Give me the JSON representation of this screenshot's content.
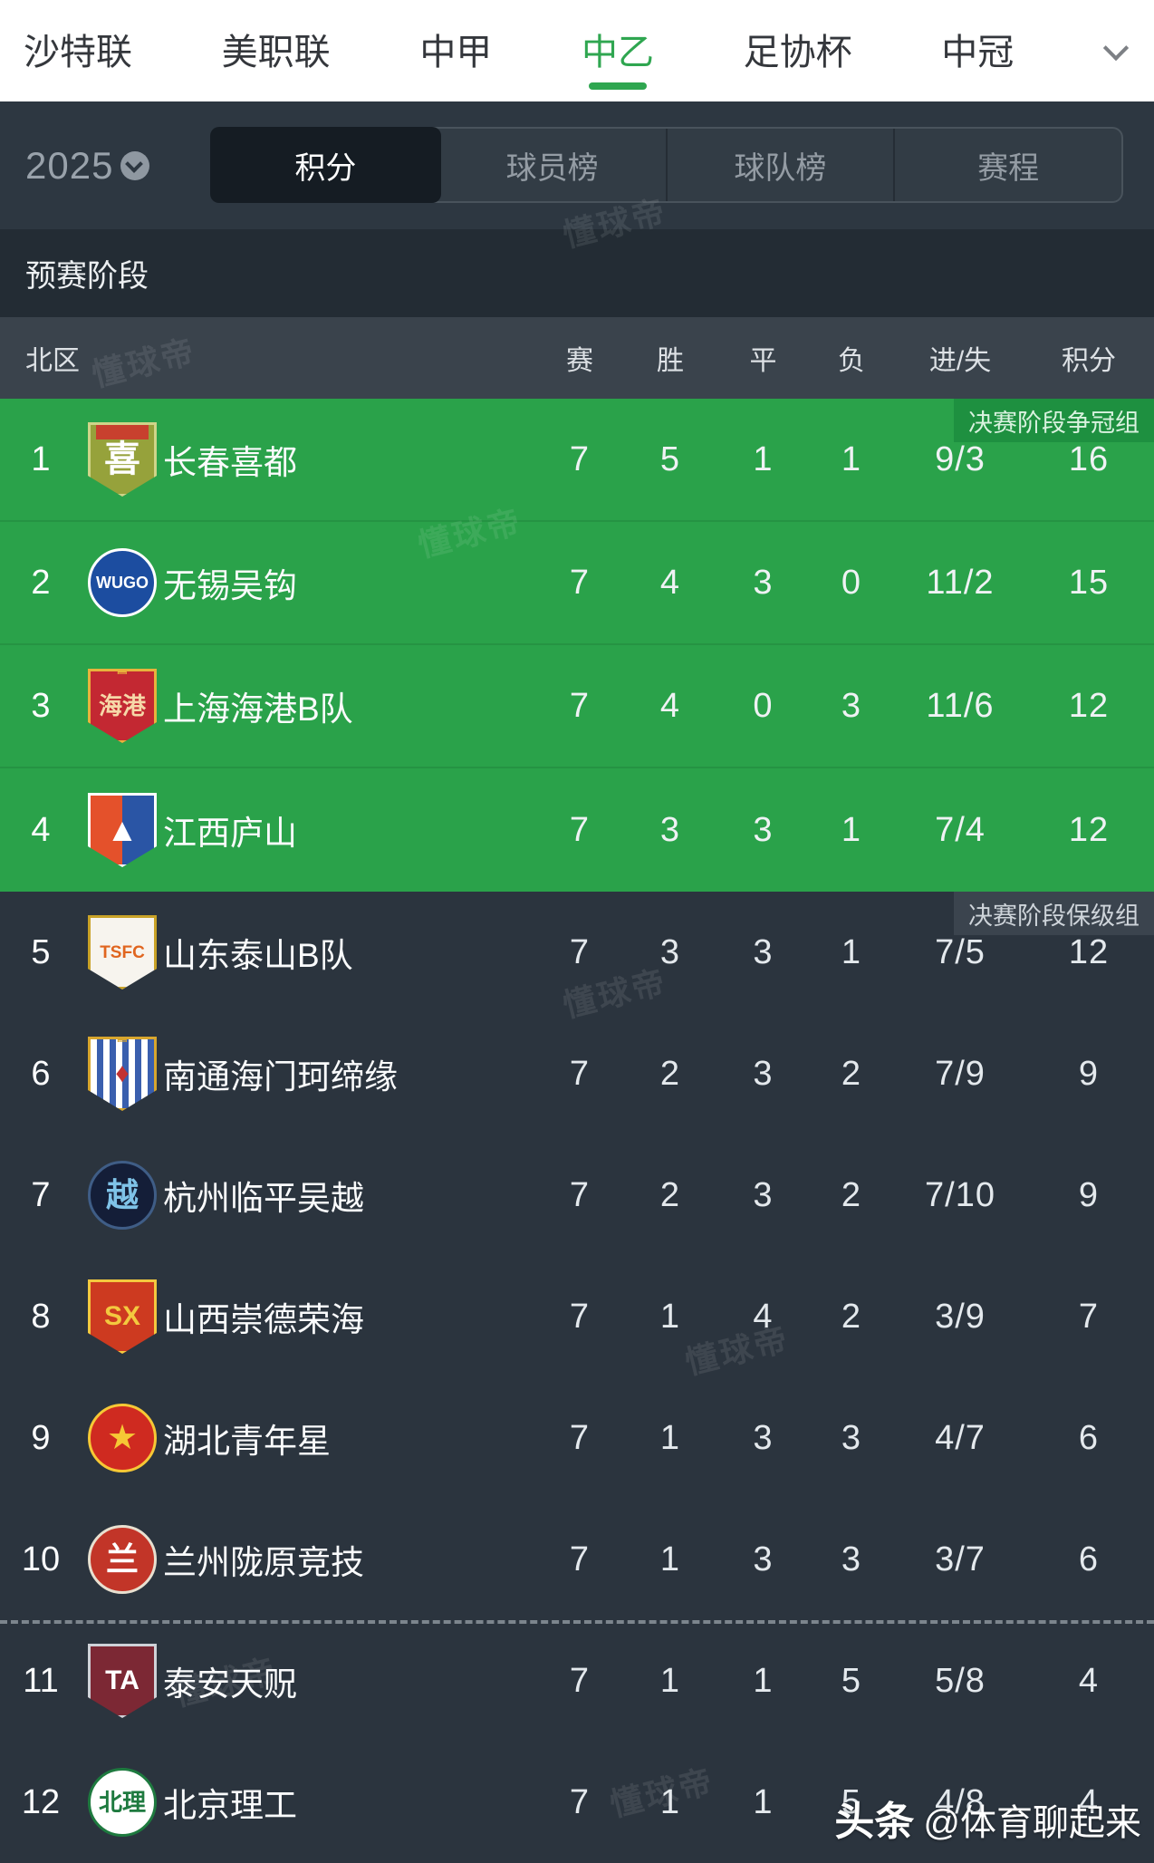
{
  "top_nav": {
    "items": [
      {
        "label": "沙特联",
        "active": false
      },
      {
        "label": "美职联",
        "active": false
      },
      {
        "label": "中甲",
        "active": false
      },
      {
        "label": "中乙",
        "active": true
      },
      {
        "label": "足协杯",
        "active": false
      },
      {
        "label": "中冠",
        "active": false
      }
    ],
    "more_icon": "chevron-down",
    "active_color": "#2fa650"
  },
  "filter_bar": {
    "season": "2025",
    "tabs": [
      {
        "label": "积分",
        "active": true
      },
      {
        "label": "球员榜",
        "active": false
      },
      {
        "label": "球队榜",
        "active": false
      },
      {
        "label": "赛程",
        "active": false
      }
    ]
  },
  "stage_title": "预赛阶段",
  "table": {
    "region_header": "北区",
    "columns": [
      "赛",
      "胜",
      "平",
      "负",
      "进/失",
      "积分"
    ],
    "promotion_label": "决赛阶段争冠组",
    "relegation_label": "决赛阶段保级组",
    "dashed_divider_after_rank": 10,
    "zone_colors": {
      "promotion_bg": "#2aa24a",
      "relegation_bg": "#2b343e"
    },
    "rows": [
      {
        "rank": 1,
        "team": "长春喜都",
        "played": 7,
        "won": 5,
        "drawn": 1,
        "lost": 1,
        "goals": "9/3",
        "points": 16,
        "group": "promotion",
        "logo": {
          "shape": "shield",
          "bg": "#96a23b",
          "ring": "#cfd489",
          "band": "#c8402e",
          "text": "喜",
          "text_color": "#ffffff",
          "text_size": 40
        }
      },
      {
        "rank": 2,
        "team": "无锡吴钩",
        "played": 7,
        "won": 4,
        "drawn": 3,
        "lost": 0,
        "goals": "11/2",
        "points": 15,
        "group": "promotion",
        "logo": {
          "shape": "circle",
          "bg": "#1c4da0",
          "ring": "#ffffff",
          "text": "WUGO",
          "text_color": "#ffffff",
          "text_size": 18
        }
      },
      {
        "rank": 3,
        "team": "上海海港B队",
        "played": 7,
        "won": 4,
        "drawn": 0,
        "lost": 3,
        "goals": "11/6",
        "points": 12,
        "group": "promotion",
        "logo": {
          "shape": "shield",
          "bg": "#c32832",
          "ring": "#e8b33c",
          "crown": "#e8b33c",
          "text": "海港",
          "text_color": "#f6d8a8",
          "text_size": 26
        }
      },
      {
        "rank": 4,
        "team": "江西庐山",
        "played": 7,
        "won": 3,
        "drawn": 3,
        "lost": 1,
        "goals": "7/4",
        "points": 12,
        "group": "promotion",
        "logo": {
          "shape": "shield",
          "bg": "linear-gradient(90deg,#e4512b 50%,#2a55a5 50%)",
          "ring": "#ffffff",
          "text": "▲",
          "text_color": "#ffffff",
          "text_size": 36
        }
      },
      {
        "rank": 5,
        "team": "山东泰山B队",
        "played": 7,
        "won": 3,
        "drawn": 3,
        "lost": 1,
        "goals": "7/5",
        "points": 12,
        "group": "relegation",
        "logo": {
          "shape": "shield",
          "bg": "#f7f4ee",
          "ring": "#c9a227",
          "text": "TSFC",
          "text_color": "#e0651f",
          "text_size": 19
        }
      },
      {
        "rank": 6,
        "team": "南通海门珂缔缘",
        "played": 7,
        "won": 2,
        "drawn": 3,
        "lost": 2,
        "goals": "7/9",
        "points": 9,
        "group": "relegation",
        "logo": {
          "shape": "shield",
          "bg": "repeating-linear-gradient(90deg,#ffffff 0 7px,#3a5fae 7px 14px)",
          "ring": "#d8a62e",
          "crown": "#d8a62e",
          "text": "♦",
          "text_color": "#c23232",
          "text_size": 30
        }
      },
      {
        "rank": 7,
        "team": "杭州临平吴越",
        "played": 7,
        "won": 2,
        "drawn": 3,
        "lost": 2,
        "goals": "7/10",
        "points": 9,
        "group": "relegation",
        "logo": {
          "shape": "circle",
          "bg": "#141e38",
          "ring": "#3f5d86",
          "text": "越",
          "text_color": "#7fc3e8",
          "text_size": 36
        }
      },
      {
        "rank": 8,
        "team": "山西崇德荣海",
        "played": 7,
        "won": 1,
        "drawn": 4,
        "lost": 2,
        "goals": "3/9",
        "points": 7,
        "group": "relegation",
        "logo": {
          "shape": "shield",
          "bg": "#cd3a20",
          "ring": "#f3c93f",
          "text": "SX",
          "text_color": "#f3c93f",
          "text_size": 30
        }
      },
      {
        "rank": 9,
        "team": "湖北青年星",
        "played": 7,
        "won": 1,
        "drawn": 3,
        "lost": 3,
        "goals": "4/7",
        "points": 6,
        "group": "relegation",
        "logo": {
          "shape": "circle",
          "bg": "#cf2a20",
          "ring": "#f6c835",
          "text": "★",
          "text_color": "#f6c835",
          "text_size": 38
        }
      },
      {
        "rank": 10,
        "team": "兰州陇原竞技",
        "played": 7,
        "won": 1,
        "drawn": 3,
        "lost": 3,
        "goals": "3/7",
        "points": 6,
        "group": "relegation",
        "logo": {
          "shape": "circle",
          "bg": "#c23528",
          "ring": "#e8e0d0",
          "text": "兰",
          "text_color": "#ffffff",
          "text_size": 36
        }
      },
      {
        "rank": 11,
        "team": "泰安天贶",
        "played": 7,
        "won": 1,
        "drawn": 1,
        "lost": 5,
        "goals": "5/8",
        "points": 4,
        "group": "relegation",
        "logo": {
          "shape": "shield",
          "bg": "#7c2834",
          "ring": "#cfd2d8",
          "text": "TA",
          "text_color": "#ffffff",
          "text_size": 30
        }
      },
      {
        "rank": 12,
        "team": "北京理工",
        "played": 7,
        "won": 1,
        "drawn": 1,
        "lost": 5,
        "goals": "4/8",
        "points": 4,
        "group": "relegation",
        "logo": {
          "shape": "circle",
          "bg": "#ffffff",
          "ring": "#1e7a3f",
          "text": "北理",
          "text_color": "#1e7a3f",
          "text_size": 26
        }
      }
    ]
  },
  "watermark": {
    "text": "懂球帝"
  },
  "credit": {
    "brand": "头条",
    "handle": "@体育聊起来"
  }
}
